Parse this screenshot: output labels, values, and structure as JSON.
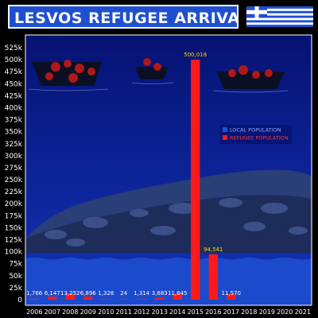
{
  "header": {
    "title": "LESVOS REFUGEE ARRIVALS"
  },
  "colors": {
    "background": "#000000",
    "plot_background": "#0a1a8c",
    "local_population": "#1f4fd1",
    "refugee_population": "#ff1a1a",
    "highlight_label": "#ffd800"
  },
  "icons": {
    "flag": "greek-flag-icon"
  },
  "chart_data": {
    "type": "bar",
    "title": "LESVOS REFUGEE ARRIVALS",
    "categories": [
      "2006",
      "2007",
      "2008",
      "2009",
      "2010",
      "2011",
      "2012",
      "2013",
      "2014",
      "2015",
      "2016",
      "2017",
      "2018",
      "2019",
      "2020",
      "2021"
    ],
    "series": [
      {
        "name": "LOCAL POPULATION",
        "values": [
          86000,
          86000,
          86000,
          86000,
          86000,
          86000,
          86000,
          86000,
          86000,
          86000,
          86000,
          86000,
          86000,
          86000,
          86000,
          86000
        ]
      },
      {
        "name": "REFUGEE POPULATION",
        "values": [
          1766,
          6147,
          13252,
          6896,
          1328,
          24,
          1314,
          3683,
          11845,
          500018,
          94541,
          11570,
          null,
          null,
          null,
          null
        ]
      }
    ],
    "data_labels": [
      "1,766",
      "6,147",
      "13,252",
      "6,896",
      "1,328",
      "24",
      "1,314",
      "3,683",
      "11,845",
      "500,018",
      "94,541",
      "11,570",
      "",
      "",
      "",
      ""
    ],
    "y_tick_labels": [
      "0",
      "25k",
      "50k",
      "75k",
      "100k",
      "125k",
      "150k",
      "175k",
      "200k",
      "225k",
      "250k",
      "275k",
      "300k",
      "325k",
      "350k",
      "375k",
      "400k",
      "425k",
      "450k",
      "475k",
      "500k",
      "525k"
    ],
    "ylim": [
      0,
      525000
    ],
    "grid": false,
    "legend_position": "center-right"
  }
}
